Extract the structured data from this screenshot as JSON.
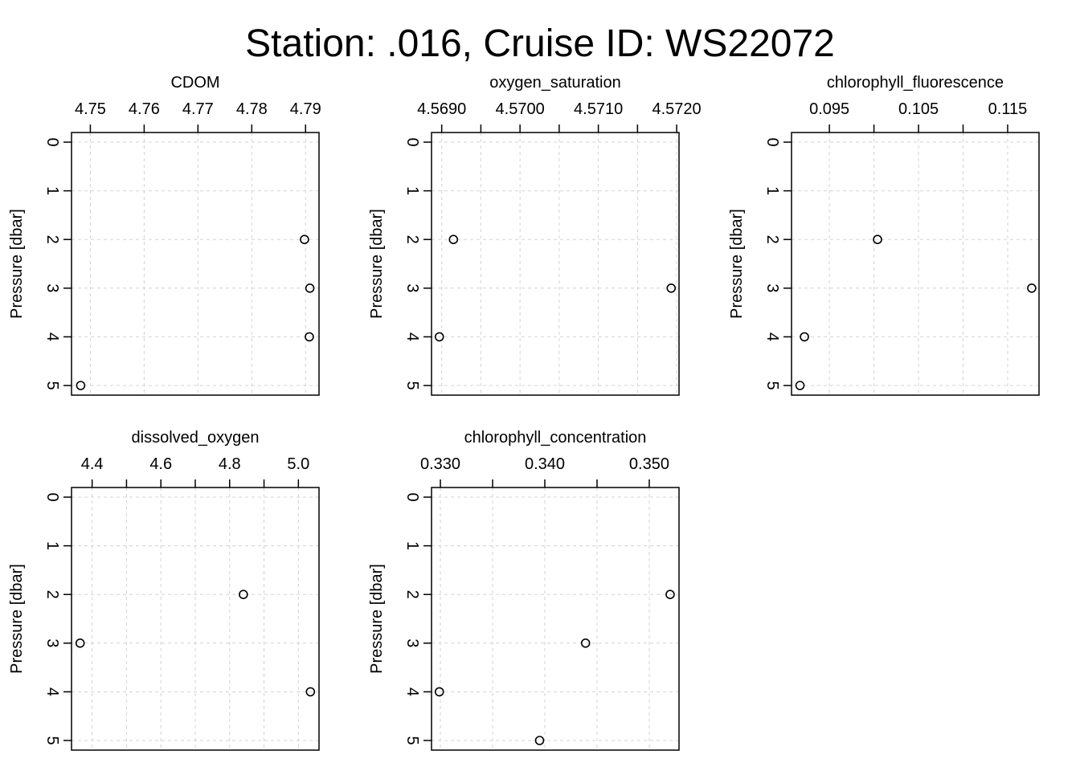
{
  "title": "Station: .016, Cruise ID: WS22072",
  "chart_data": [
    {
      "type": "scatter",
      "title": "CDOM",
      "ylabel": "Pressure [dbar]",
      "xlim": [
        4.7465,
        4.7925
      ],
      "ylim": [
        0,
        5
      ],
      "y_reversed": true,
      "x_ticks": [
        4.75,
        4.76,
        4.77,
        4.78,
        4.79
      ],
      "x_tick_labels": [
        "4.75",
        "4.76",
        "4.77",
        "4.78",
        "4.79"
      ],
      "y_ticks": [
        0,
        1,
        2,
        3,
        4,
        5
      ],
      "y_tick_labels": [
        "0",
        "1",
        "2",
        "3",
        "4",
        "5"
      ],
      "x_grid": [
        4.75,
        4.76,
        4.77,
        4.78,
        4.79
      ],
      "grid": true,
      "points": [
        {
          "x": 4.7898,
          "y": 2
        },
        {
          "x": 4.7908,
          "y": 3
        },
        {
          "x": 4.7907,
          "y": 4
        },
        {
          "x": 4.7482,
          "y": 5
        }
      ]
    },
    {
      "type": "scatter",
      "title": "oxygen_saturation",
      "ylabel": "Pressure [dbar]",
      "xlim": [
        4.56887,
        4.57203
      ],
      "ylim": [
        0,
        5
      ],
      "y_reversed": true,
      "x_ticks": [
        4.569,
        4.5695,
        4.57,
        4.5705,
        4.571,
        4.5715,
        4.572
      ],
      "x_tick_labels": [
        "4.5690",
        "",
        "4.5700",
        "",
        "4.5710",
        "",
        "4.5720"
      ],
      "y_ticks": [
        0,
        1,
        2,
        3,
        4,
        5
      ],
      "y_tick_labels": [
        "0",
        "1",
        "2",
        "3",
        "4",
        "5"
      ],
      "x_grid": [
        4.569,
        4.5695,
        4.57,
        4.5705,
        4.571,
        4.5715,
        4.572
      ],
      "grid": true,
      "points": [
        {
          "x": 4.56915,
          "y": 2
        },
        {
          "x": 4.57193,
          "y": 3
        },
        {
          "x": 4.56897,
          "y": 4
        }
      ]
    },
    {
      "type": "scatter",
      "title": "chlorophyll_fluorescence",
      "ylabel": "Pressure [dbar]",
      "xlim": [
        0.09075,
        0.11852
      ],
      "ylim": [
        0,
        5
      ],
      "y_reversed": true,
      "x_ticks": [
        0.095,
        0.1,
        0.105,
        0.11,
        0.115
      ],
      "x_tick_labels": [
        "0.095",
        "",
        "0.105",
        "",
        "0.115"
      ],
      "y_ticks": [
        0,
        1,
        2,
        3,
        4,
        5
      ],
      "y_tick_labels": [
        "0",
        "1",
        "2",
        "3",
        "4",
        "5"
      ],
      "x_grid": [
        0.095,
        0.1,
        0.105,
        0.11,
        0.115
      ],
      "grid": true,
      "points": [
        {
          "x": 0.1004,
          "y": 2
        },
        {
          "x": 0.1177,
          "y": 3
        },
        {
          "x": 0.0922,
          "y": 4
        },
        {
          "x": 0.0917,
          "y": 5
        }
      ]
    },
    {
      "type": "scatter",
      "title": "dissolved_oxygen",
      "ylabel": "Pressure [dbar]",
      "xlim": [
        4.34,
        5.06
      ],
      "ylim": [
        0,
        5
      ],
      "y_reversed": true,
      "x_ticks": [
        4.4,
        4.5,
        4.6,
        4.7,
        4.8,
        4.9,
        5.0
      ],
      "x_tick_labels": [
        "4.4",
        "",
        "4.6",
        "",
        "4.8",
        "",
        "5.0"
      ],
      "y_ticks": [
        0,
        1,
        2,
        3,
        4,
        5
      ],
      "y_tick_labels": [
        "0",
        "1",
        "2",
        "3",
        "4",
        "5"
      ],
      "x_grid": [
        4.4,
        4.5,
        4.6,
        4.7,
        4.8,
        4.9,
        5.0
      ],
      "grid": true,
      "points": [
        {
          "x": 4.84,
          "y": 2
        },
        {
          "x": 4.365,
          "y": 3
        },
        {
          "x": 5.035,
          "y": 4
        }
      ]
    },
    {
      "type": "scatter",
      "title": "chlorophyll_concentration",
      "ylabel": "Pressure [dbar]",
      "xlim": [
        0.32915,
        0.35285
      ],
      "ylim": [
        0,
        5
      ],
      "y_reversed": true,
      "x_ticks": [
        0.33,
        0.335,
        0.34,
        0.345,
        0.35
      ],
      "x_tick_labels": [
        "0.330",
        "",
        "0.340",
        "",
        "0.350"
      ],
      "y_ticks": [
        0,
        1,
        2,
        3,
        4,
        5
      ],
      "y_tick_labels": [
        "0",
        "1",
        "2",
        "3",
        "4",
        "5"
      ],
      "x_grid": [
        0.33,
        0.335,
        0.34,
        0.345,
        0.35
      ],
      "grid": true,
      "points": [
        {
          "x": 0.352,
          "y": 2
        },
        {
          "x": 0.3439,
          "y": 3
        },
        {
          "x": 0.3299,
          "y": 4
        },
        {
          "x": 0.3395,
          "y": 5
        }
      ]
    }
  ]
}
